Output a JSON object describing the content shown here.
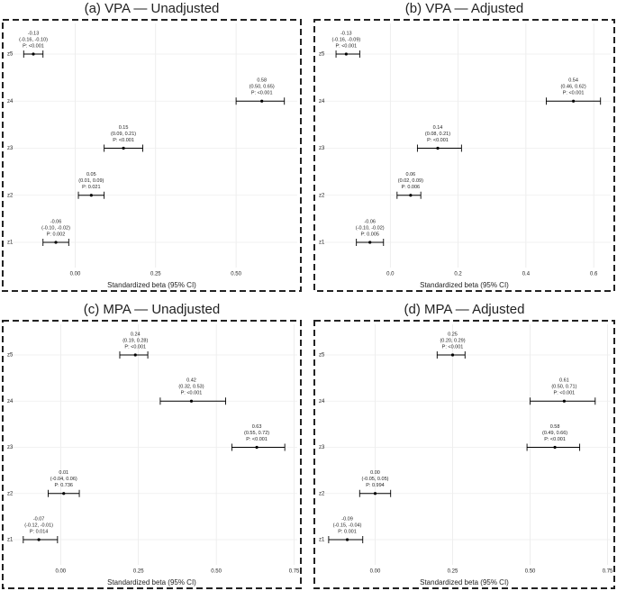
{
  "chart_data": [
    {
      "type": "forest",
      "title": "(a) VPA — Unadjusted",
      "x_label": "Standardized beta (95% CI)",
      "categories": [
        "z1",
        "z2",
        "z3",
        "z4",
        "z5"
      ],
      "values": [
        -0.06,
        0.05,
        0.15,
        0.58,
        -0.13
      ],
      "lower": [
        -0.1,
        0.01,
        0.09,
        0.5,
        -0.16
      ],
      "upper": [
        -0.02,
        0.09,
        0.21,
        0.65,
        -0.1
      ],
      "ci_labels": [
        "(-0.10, -0.02)",
        "(0.01, 0.09)",
        "(0.09, 0.21)",
        "(0.50, 0.65)",
        "(-0.16, -0.10)"
      ],
      "p_labels": [
        "P: 0.002",
        "P: 0.021",
        "P: <0.001",
        "P: <0.001",
        "P: <0.001"
      ],
      "xlim": [
        -0.2,
        0.69
      ],
      "xticks": [
        {
          "value": 0,
          "label": "0.00"
        },
        {
          "value": 0.25,
          "label": "0.25"
        },
        {
          "value": 0.5,
          "label": "0.50"
        }
      ],
      "grid": true,
      "color": "#000000"
    },
    {
      "type": "forest",
      "title": "(b) VPA — Adjusted",
      "x_label": "Standardized beta (95% CI)",
      "categories": [
        "z1",
        "z2",
        "z3",
        "z4",
        "z5"
      ],
      "values": [
        -0.06,
        0.06,
        0.14,
        0.54,
        -0.13
      ],
      "lower": [
        -0.1,
        0.02,
        0.08,
        0.46,
        -0.16
      ],
      "upper": [
        -0.02,
        0.09,
        0.21,
        0.62,
        -0.09
      ],
      "ci_labels": [
        "(-0.10, -0.02)",
        "(0.02, 0.09)",
        "(0.08, 0.21)",
        "(0.46, 0.62)",
        "(-0.16, -0.09)"
      ],
      "p_labels": [
        "P: 0.005",
        "P: 0.006",
        "P: <0.001",
        "P: <0.001",
        "P: <0.001"
      ],
      "xlim": [
        -0.2,
        0.65
      ],
      "xticks": [
        {
          "value": 0,
          "label": "0.0"
        },
        {
          "value": 0.2,
          "label": "0.2"
        },
        {
          "value": 0.4,
          "label": "0.4"
        },
        {
          "value": 0.6,
          "label": "0.6"
        }
      ],
      "grid": true,
      "color": "#000000"
    },
    {
      "type": "forest",
      "title": "(c) MPA — Unadjusted",
      "x_label": "Standardized beta (95% CI)",
      "categories": [
        "z1",
        "z2",
        "z3",
        "z4",
        "z5"
      ],
      "values": [
        -0.07,
        0.01,
        0.63,
        0.42,
        0.24
      ],
      "lower": [
        -0.12,
        -0.04,
        0.55,
        0.32,
        0.19
      ],
      "upper": [
        -0.01,
        0.06,
        0.72,
        0.53,
        0.28
      ],
      "ci_labels": [
        "(-0.12, -0.01)",
        "(-0.04, 0.06)",
        "(0.55, 0.72)",
        "(0.32, 0.53)",
        "(0.19, 0.28)"
      ],
      "p_labels": [
        "P: 0.014",
        "P: 0.736",
        "P: <0.001",
        "P: <0.001",
        "P: <0.001"
      ],
      "xlim": [
        -0.16,
        0.76
      ],
      "xticks": [
        {
          "value": 0,
          "label": "0.00"
        },
        {
          "value": 0.25,
          "label": "0.25"
        },
        {
          "value": 0.5,
          "label": "0.50"
        },
        {
          "value": 0.75,
          "label": "0.75"
        }
      ],
      "grid": true,
      "color": "#000000"
    },
    {
      "type": "forest",
      "title": "(d) MPA — Adjusted",
      "x_label": "Standardized beta (95% CI)",
      "categories": [
        "z1",
        "z2",
        "z3",
        "z4",
        "z5"
      ],
      "values": [
        -0.09,
        0,
        0.58,
        0.61,
        0.25
      ],
      "value_labels": [
        "-0.09",
        "0.00",
        "0.58",
        "0.61",
        "0.25"
      ],
      "lower": [
        -0.15,
        -0.05,
        0.49,
        0.5,
        0.2
      ],
      "upper": [
        -0.04,
        0.05,
        0.66,
        0.71,
        0.29
      ],
      "ci_labels": [
        "(-0.15, -0.04)",
        "(-0.05, 0.05)",
        "(0.49, 0.66)",
        "(0.50, 0.71)",
        "(0.20, 0.29)"
      ],
      "p_labels": [
        "P: 0.001",
        "P: 0.994",
        "P: <0.001",
        "P: <0.001",
        "P: <0.001"
      ],
      "xlim": [
        -0.17,
        0.76
      ],
      "xticks": [
        {
          "value": 0,
          "label": "0.00"
        },
        {
          "value": 0.25,
          "label": "0.25"
        },
        {
          "value": 0.5,
          "label": "0.50"
        },
        {
          "value": 0.75,
          "label": "0.75"
        }
      ],
      "grid": true,
      "color": "#000000"
    }
  ]
}
